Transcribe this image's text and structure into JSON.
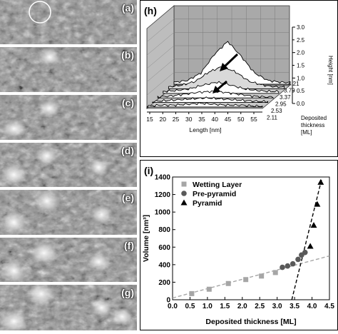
{
  "stm_panels": [
    {
      "label": "(a)"
    },
    {
      "label": "(b)"
    },
    {
      "label": "(c)"
    },
    {
      "label": "(d)"
    },
    {
      "label": "(e)"
    },
    {
      "label": "(f)"
    },
    {
      "label": "(g)"
    }
  ],
  "panel_h": {
    "label": "(h)",
    "xlabel": "Length [nm]",
    "zlabel": "Height [nm]",
    "ylabel": [
      "Deposited",
      "thickness",
      "[ML]"
    ],
    "x_ticks": [
      "15",
      "20",
      "25",
      "30",
      "35",
      "40",
      "45",
      "50",
      "55"
    ],
    "z_ticks": [
      "0.0",
      "0.5",
      "1.0",
      "1.5",
      "2.0",
      "2.5",
      "3.0"
    ],
    "thickness_ticks": [
      "4.21",
      "3.79",
      "3.37",
      "2.95",
      "2.53",
      "2.11"
    ]
  },
  "panel_i": {
    "label": "(i)",
    "legend": [
      "Wetting Layer",
      "Pre-pyramid",
      "Pyramid"
    ],
    "xlabel": "Deposited thickness [ML]",
    "ylabel": "Volume [nm³]"
  },
  "chart_data": [
    {
      "type": "line",
      "panel": "(h)",
      "title": "",
      "xlabel": "Length [nm]",
      "ylabel": "Height [nm]",
      "zlabel": "Deposited thickness [ML]",
      "xlim": [
        15,
        58
      ],
      "zlim": [
        0,
        3.0
      ],
      "series": [
        {
          "name": "2.11",
          "x": [
            15,
            20,
            25,
            30,
            35,
            40,
            45,
            50,
            55
          ],
          "values": [
            0.05,
            0.1,
            0.1,
            0.15,
            0.2,
            0.15,
            0.1,
            0.1,
            0.05
          ]
        },
        {
          "name": "2.53",
          "x": [
            15,
            20,
            25,
            30,
            35,
            40,
            45,
            50,
            55
          ],
          "values": [
            0.05,
            0.1,
            0.15,
            0.2,
            0.25,
            0.2,
            0.15,
            0.1,
            0.05
          ]
        },
        {
          "name": "2.95",
          "x": [
            15,
            20,
            25,
            30,
            35,
            40,
            45,
            50,
            55
          ],
          "values": [
            0.05,
            0.1,
            0.2,
            0.3,
            0.35,
            0.3,
            0.2,
            0.1,
            0.05
          ]
        },
        {
          "name": "3.37",
          "x": [
            15,
            20,
            25,
            30,
            35,
            40,
            45,
            50,
            55
          ],
          "values": [
            0.1,
            0.15,
            0.25,
            0.45,
            0.6,
            0.45,
            0.25,
            0.15,
            0.1
          ]
        },
        {
          "name": "3.79",
          "x": [
            15,
            20,
            25,
            30,
            35,
            40,
            45,
            50,
            55
          ],
          "values": [
            0.1,
            0.2,
            0.4,
            0.9,
            1.2,
            0.9,
            0.4,
            0.2,
            0.1
          ]
        },
        {
          "name": "4.21",
          "x": [
            15,
            20,
            25,
            30,
            35,
            40,
            45,
            50,
            55
          ],
          "values": [
            0.1,
            0.2,
            0.6,
            1.6,
            2.3,
            1.5,
            0.6,
            0.2,
            0.1
          ]
        }
      ]
    },
    {
      "type": "scatter",
      "panel": "(i)",
      "title": "",
      "xlabel": "Deposited thickness [ML]",
      "ylabel": "Volume [nm³]",
      "xlim": [
        0.0,
        4.5
      ],
      "ylim": [
        0,
        1400
      ],
      "x_ticks": [
        "0.0",
        "0.5",
        "1.0",
        "1.5",
        "2.0",
        "2.5",
        "3.0",
        "3.5",
        "4.0",
        "4.5"
      ],
      "y_ticks": [
        "0",
        "200",
        "400",
        "600",
        "800",
        "1000",
        "1200",
        "1400"
      ],
      "legend_position": "top-left",
      "series": [
        {
          "name": "Wetting Layer",
          "marker": "square",
          "color": "#a6a6a6",
          "points": [
            [
              0.55,
              70
            ],
            [
              1.05,
              120
            ],
            [
              1.6,
              185
            ],
            [
              2.1,
              230
            ],
            [
              2.55,
              270
            ],
            [
              2.95,
              310
            ]
          ]
        },
        {
          "name": "Pre-pyramid",
          "marker": "circle",
          "color": "#595959",
          "points": [
            [
              3.15,
              370
            ],
            [
              3.3,
              385
            ],
            [
              3.45,
              410
            ],
            [
              3.6,
              460
            ],
            [
              3.7,
              510
            ],
            [
              3.8,
              540
            ]
          ]
        },
        {
          "name": "Pyramid",
          "marker": "triangle",
          "color": "#000000",
          "points": [
            [
              3.95,
              610
            ],
            [
              4.05,
              850
            ],
            [
              4.15,
              1090
            ],
            [
              4.25,
              1340
            ]
          ]
        }
      ],
      "fit_lines": [
        {
          "style": "dashed",
          "color": "#a6a6a6",
          "from": [
            0.0,
            20
          ],
          "to": [
            4.5,
            500
          ]
        },
        {
          "style": "dashed",
          "color": "#000000",
          "from": [
            3.42,
            0
          ],
          "to": [
            4.28,
            1380
          ]
        }
      ]
    }
  ]
}
